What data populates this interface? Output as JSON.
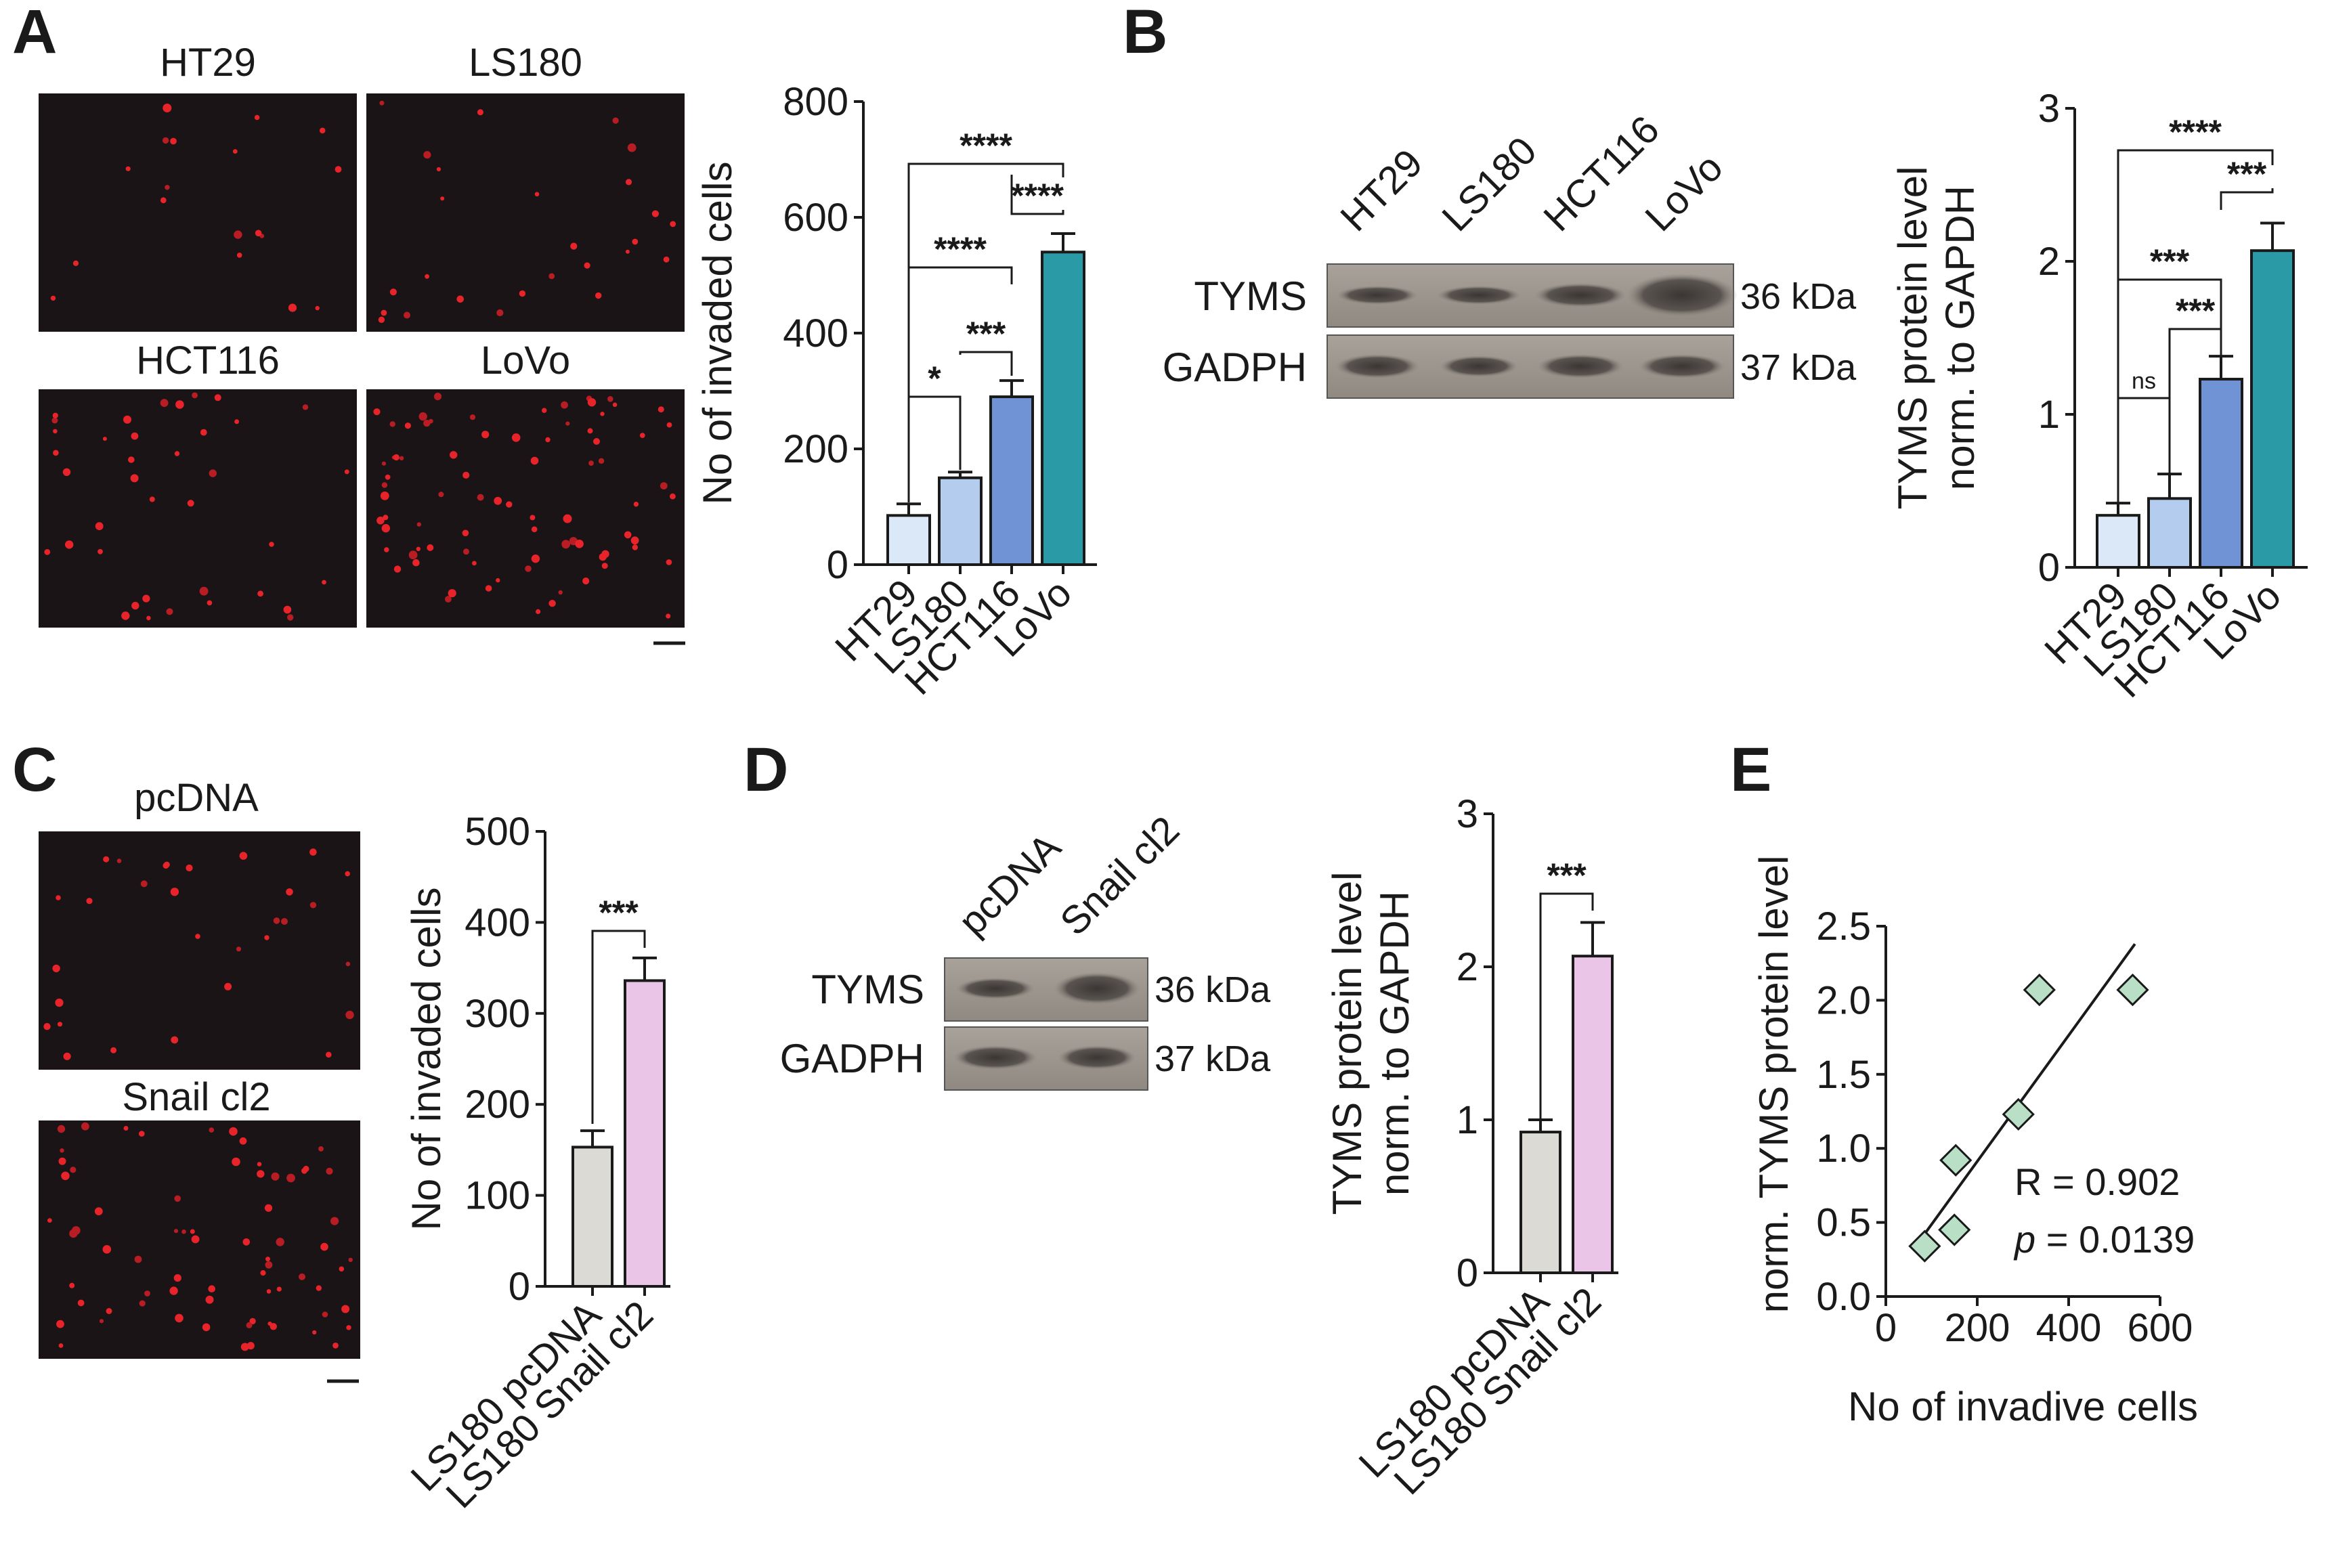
{
  "panels": {
    "A": {
      "label": "A",
      "images": [
        "HT29",
        "LS180",
        "HCT116",
        "LoVo"
      ]
    },
    "B": {
      "label": "B",
      "lanes": [
        "HT29",
        "LS180",
        "HCT116",
        "LoVo"
      ],
      "proteins": [
        {
          "name": "TYMS",
          "kda": "36 kDa"
        },
        {
          "name": "GADPH",
          "kda": "37 kDa"
        }
      ]
    },
    "C": {
      "label": "C",
      "images": [
        "pcDNA",
        "Snail cl2"
      ]
    },
    "D": {
      "label": "D",
      "lanes": [
        "pcDNA",
        "Snail cl2"
      ],
      "proteins": [
        {
          "name": "TYMS",
          "kda": "36 kDa"
        },
        {
          "name": "GADPH",
          "kda": "37 kDa"
        }
      ]
    },
    "E": {
      "label": "E",
      "annotation_r": "R = 0.902",
      "annotation_p_symbol": "p",
      "annotation_p_value": " = 0.0139"
    }
  },
  "colors": {
    "HT29": "#dbe8f7",
    "LS180": "#b4ccee",
    "HCT116": "#6f93d4",
    "LoVo": "#2b9aa7",
    "pcDNA": "#dcdad4",
    "Snail": "#ebc5e8",
    "scatter": "#b9e0c7"
  },
  "chart_data": [
    {
      "id": "A",
      "type": "bar",
      "categories": [
        "HT29",
        "LS180",
        "HCT116",
        "LoVo"
      ],
      "values": [
        85,
        150,
        290,
        540
      ],
      "errors": [
        20,
        10,
        28,
        32
      ],
      "ylabel": "No of invaded cells",
      "ylim": [
        0,
        800
      ],
      "yticks": [
        0,
        200,
        400,
        600,
        800
      ],
      "significance": [
        {
          "from": 0,
          "to": 3,
          "label": "****"
        },
        {
          "from": 2,
          "to": 3,
          "label": "****"
        },
        {
          "from": 0,
          "to": 2,
          "label": "****"
        },
        {
          "from": 1,
          "to": 2,
          "label": "***"
        },
        {
          "from": 0,
          "to": 1,
          "label": "*"
        }
      ]
    },
    {
      "id": "B",
      "type": "bar",
      "categories": [
        "HT29",
        "LS180",
        "HCT116",
        "LoVo"
      ],
      "values": [
        0.34,
        0.45,
        1.23,
        2.07
      ],
      "errors": [
        0.08,
        0.16,
        0.15,
        0.18
      ],
      "ylabel": [
        "TYMS protein level",
        "norm. to GAPDH"
      ],
      "ylim": [
        0,
        3
      ],
      "yticks": [
        0,
        1,
        2,
        3
      ],
      "significance": [
        {
          "from": 0,
          "to": 3,
          "label": "****"
        },
        {
          "from": 2,
          "to": 3,
          "label": "***"
        },
        {
          "from": 0,
          "to": 2,
          "label": "***"
        },
        {
          "from": 1,
          "to": 2,
          "label": "***"
        },
        {
          "from": 0,
          "to": 1,
          "label": "ns"
        }
      ]
    },
    {
      "id": "C",
      "type": "bar",
      "categories": [
        "LS180 pcDNA",
        "LS180 Snail cl2"
      ],
      "values": [
        153,
        336
      ],
      "errors": [
        18,
        25
      ],
      "ylabel": "No of invaded cells",
      "ylim": [
        0,
        500
      ],
      "yticks": [
        0,
        100,
        200,
        300,
        400,
        500
      ],
      "significance": [
        {
          "from": 0,
          "to": 1,
          "label": "***"
        }
      ]
    },
    {
      "id": "D",
      "type": "bar",
      "categories": [
        "LS180 pcDNA",
        "LS180 Snail cl2"
      ],
      "values": [
        0.92,
        2.07
      ],
      "errors": [
        0.08,
        0.22
      ],
      "ylabel": [
        "TYMS protein level",
        "norm. to GAPDH"
      ],
      "ylim": [
        0,
        3
      ],
      "yticks": [
        0,
        1,
        2,
        3
      ],
      "significance": [
        {
          "from": 0,
          "to": 1,
          "label": "***"
        }
      ]
    },
    {
      "id": "E",
      "type": "scatter",
      "points": [
        {
          "x": 85,
          "y": 0.34
        },
        {
          "x": 150,
          "y": 0.45
        },
        {
          "x": 153,
          "y": 0.92
        },
        {
          "x": 290,
          "y": 1.23
        },
        {
          "x": 336,
          "y": 2.07
        },
        {
          "x": 540,
          "y": 2.07
        }
      ],
      "fit_line": {
        "x": [
          75,
          545
        ],
        "y": [
          0.38,
          2.38
        ]
      },
      "xlabel": "No of invadive cells",
      "ylabel": "norm. TYMS protein level",
      "xlim": [
        0,
        600
      ],
      "ylim": [
        0,
        2.5
      ],
      "xticks": [
        0,
        200,
        400,
        600
      ],
      "yticks": [
        "0.0",
        "0.5",
        "1.0",
        "1.5",
        "2.0",
        "2.5"
      ],
      "R": 0.902,
      "p": 0.0139
    }
  ]
}
